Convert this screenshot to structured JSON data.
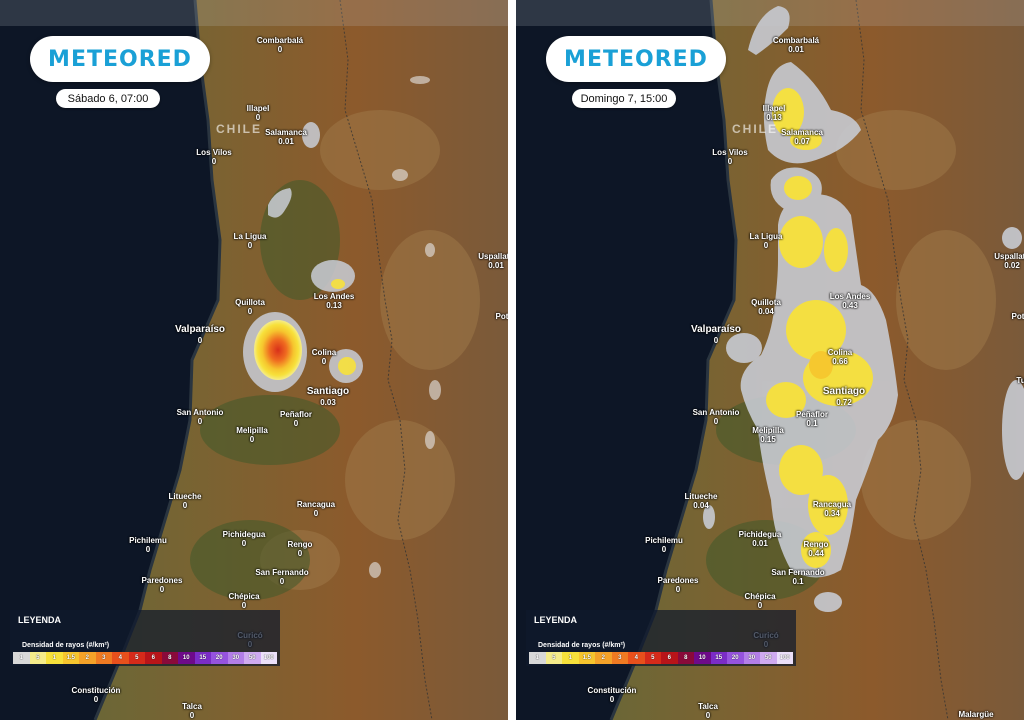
{
  "brand": "METEORED",
  "country_label": "CHILE",
  "legend": {
    "title": "LEYENDA",
    "subtitle": "Densidad de rayos (#/km²)",
    "scale": [
      {
        "label": "1",
        "color": "#d8d8d8"
      },
      {
        "label": "5",
        "color": "#f5ec8a"
      },
      {
        "label": "1",
        "color": "#f7e13b"
      },
      {
        "label": "1.5",
        "color": "#f6c52e"
      },
      {
        "label": "2",
        "color": "#f4a229"
      },
      {
        "label": "3",
        "color": "#ef7a22"
      },
      {
        "label": "4",
        "color": "#e8501c"
      },
      {
        "label": "5",
        "color": "#d62a1a"
      },
      {
        "label": "6",
        "color": "#b81419"
      },
      {
        "label": "8",
        "color": "#8a0a3a"
      },
      {
        "label": "10",
        "color": "#6e0a8a"
      },
      {
        "label": "15",
        "color": "#7b2cc7"
      },
      {
        "label": "20",
        "color": "#9653de"
      },
      {
        "label": "30",
        "color": "#b37ee8"
      },
      {
        "label": "50",
        "color": "#cfaaf0"
      },
      {
        "label": "100",
        "color": "#ece0fa"
      }
    ]
  },
  "panels": [
    {
      "time": "Sábado 6, 07:00",
      "places": [
        {
          "name": "Combarbalá",
          "value": "0"
        },
        {
          "name": "Illapel",
          "value": "0"
        },
        {
          "name": "Salamanca",
          "value": "0.01"
        },
        {
          "name": "Los Vilos",
          "value": "0"
        },
        {
          "name": "La Ligua",
          "value": "0"
        },
        {
          "name": "Los Andes",
          "value": "0.13"
        },
        {
          "name": "Quillota",
          "value": "0"
        },
        {
          "name": "Valparaíso",
          "value": "0"
        },
        {
          "name": "Colina",
          "value": "0"
        },
        {
          "name": "Santiago",
          "value": "0.03"
        },
        {
          "name": "San Antonio",
          "value": "0"
        },
        {
          "name": "Peñaflor",
          "value": "0"
        },
        {
          "name": "Melipilla",
          "value": "0"
        },
        {
          "name": "Litueche",
          "value": "0"
        },
        {
          "name": "Rancagua",
          "value": "0"
        },
        {
          "name": "Pichidegua",
          "value": "0"
        },
        {
          "name": "Pichilemu",
          "value": "0"
        },
        {
          "name": "Rengo",
          "value": "0"
        },
        {
          "name": "San Fernando",
          "value": "0"
        },
        {
          "name": "Paredones",
          "value": "0"
        },
        {
          "name": "Chépica",
          "value": "0"
        },
        {
          "name": "Curicó",
          "value": "0"
        },
        {
          "name": "Constitución",
          "value": "0"
        },
        {
          "name": "Talca",
          "value": "0"
        },
        {
          "name": "Uspallata",
          "value": "0.01"
        },
        {
          "name": "Pot",
          "value": ""
        }
      ]
    },
    {
      "time": "Domingo 7, 15:00",
      "places": [
        {
          "name": "Combarbalá",
          "value": "0.01"
        },
        {
          "name": "Illapel",
          "value": "0.13"
        },
        {
          "name": "Salamanca",
          "value": "0.07"
        },
        {
          "name": "Los Vilos",
          "value": "0"
        },
        {
          "name": "La Ligua",
          "value": "0"
        },
        {
          "name": "Los Andes",
          "value": "0.43"
        },
        {
          "name": "Quillota",
          "value": "0.04"
        },
        {
          "name": "Valparaíso",
          "value": "0"
        },
        {
          "name": "Colina",
          "value": "0.66"
        },
        {
          "name": "Santiago",
          "value": "0.72"
        },
        {
          "name": "San Antonio",
          "value": "0"
        },
        {
          "name": "Peñaflor",
          "value": "0.1"
        },
        {
          "name": "Melipilla",
          "value": "0.15"
        },
        {
          "name": "Litueche",
          "value": "0.04"
        },
        {
          "name": "Rancagua",
          "value": "0.34"
        },
        {
          "name": "Pichidegua",
          "value": "0.01"
        },
        {
          "name": "Pichilemu",
          "value": "0"
        },
        {
          "name": "Rengo",
          "value": "0.44"
        },
        {
          "name": "San Fernando",
          "value": "0.1"
        },
        {
          "name": "Paredones",
          "value": "0"
        },
        {
          "name": "Chépica",
          "value": "0"
        },
        {
          "name": "Curicó",
          "value": "0"
        },
        {
          "name": "Constitución",
          "value": "0"
        },
        {
          "name": "Talca",
          "value": "0"
        },
        {
          "name": "Uspallata",
          "value": "0.02"
        },
        {
          "name": "Malargüe",
          "value": ""
        },
        {
          "name": "Pot",
          "value": ""
        },
        {
          "name": "Tu",
          "value": ""
        }
      ]
    }
  ]
}
